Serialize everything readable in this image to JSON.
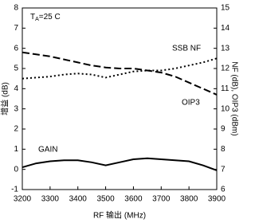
{
  "chart_data": {
    "type": "line",
    "x_label": "RF 输出 (MHz)",
    "y_label": "增益 (dB)",
    "y2_label": "NF (dB), OIP3 (dBm)",
    "annotation": {
      "text": "T",
      "subscript": "A",
      "suffix": "=25 C"
    },
    "x": [
      3200,
      3250,
      3300,
      3350,
      3400,
      3450,
      3500,
      3550,
      3600,
      3650,
      3700,
      3750,
      3800,
      3850,
      3900
    ],
    "series": [
      {
        "name": "GAIN",
        "color": "#000000",
        "style": "solid",
        "axis": "y",
        "values": [
          0.1,
          0.3,
          0.4,
          0.45,
          0.45,
          0.35,
          0.2,
          0.35,
          0.5,
          0.55,
          0.5,
          0.45,
          0.4,
          0.2,
          -0.05
        ]
      },
      {
        "name": "OIP3",
        "color": "#000000",
        "style": "dashed",
        "axis": "y2",
        "values": [
          12.8,
          12.7,
          12.6,
          12.45,
          12.3,
          12.15,
          12.05,
          12.0,
          12.0,
          11.9,
          11.8,
          11.6,
          11.3,
          11.0,
          10.7
        ]
      },
      {
        "name": "SSB NF",
        "color": "#000000",
        "style": "dotted",
        "axis": "y2",
        "values": [
          11.5,
          11.55,
          11.6,
          11.7,
          11.75,
          11.7,
          11.55,
          11.7,
          11.85,
          11.9,
          11.9,
          12.0,
          12.15,
          12.3,
          12.5
        ]
      }
    ],
    "xlim": [
      3200,
      3900
    ],
    "xticks": [
      3200,
      3300,
      3400,
      3500,
      3600,
      3700,
      3800,
      3900
    ],
    "ylim": [
      -1,
      8
    ],
    "yticks": [
      -1,
      0,
      1,
      2,
      3,
      4,
      5,
      6,
      7,
      8
    ],
    "y2lim": [
      6,
      15
    ],
    "y2ticks": [
      6,
      7,
      8,
      9,
      10,
      11,
      12,
      13,
      14,
      15
    ],
    "grid": false
  }
}
